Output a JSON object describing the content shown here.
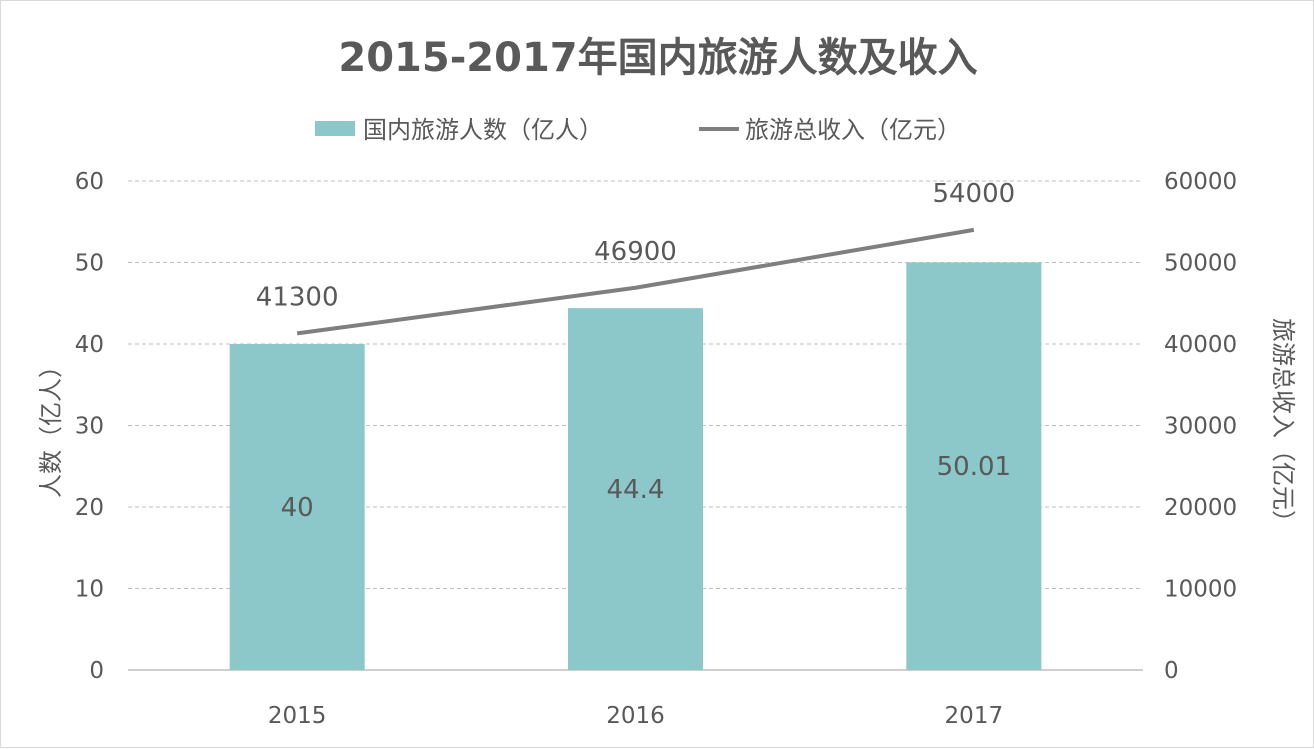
{
  "chart_data": {
    "type": "bar",
    "title": "2015-2017年国内旅游人数及收入",
    "categories": [
      "2015",
      "2016",
      "2017"
    ],
    "series": [
      {
        "name": "国内旅游人数（亿人）",
        "type": "bar",
        "axis": "left",
        "color": "#8cc7c9",
        "values": [
          40,
          44.4,
          50.01
        ],
        "labels": [
          "40",
          "44.4",
          "50.01"
        ]
      },
      {
        "name": "旅游总收入（亿元）",
        "type": "line",
        "axis": "right",
        "color": "#7f7f7f",
        "values": [
          41300,
          46900,
          54000
        ],
        "labels": [
          "41300",
          "46900",
          "54000"
        ]
      }
    ],
    "y_left": {
      "label": "人数（亿人）",
      "range": [
        0,
        60
      ],
      "ticks": [
        "0",
        "10",
        "20",
        "30",
        "40",
        "50",
        "60"
      ]
    },
    "y_right": {
      "label": "旅游总收入（亿元）",
      "range": [
        0,
        60000
      ],
      "ticks": [
        "0",
        "10000",
        "20000",
        "30000",
        "40000",
        "50000",
        "60000"
      ]
    },
    "legend_position": "top",
    "grid": true
  }
}
